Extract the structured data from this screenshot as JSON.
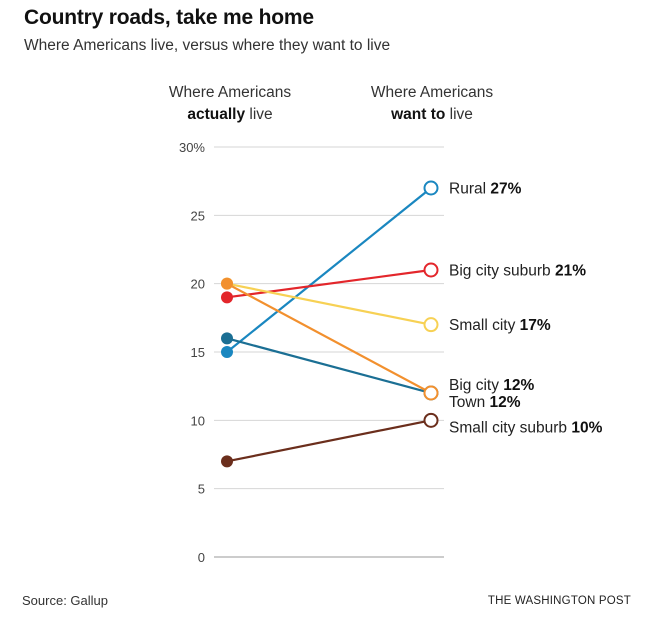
{
  "header": {
    "title": "Country roads, take me home",
    "subtitle": "Where Americans live, versus where they want to live"
  },
  "columns": {
    "left_line1": "Where Americans",
    "left_bold": "actually",
    "left_rest": " live",
    "right_line1": "Where Americans",
    "right_bold": "want to",
    "right_rest": " live"
  },
  "footer": {
    "source": "Source: Gallup",
    "brand": "THE WASHINGTON POST"
  },
  "chart_data": {
    "type": "slope",
    "x": [
      "Where Americans actually live",
      "Where Americans want to live"
    ],
    "ylim": [
      0,
      30
    ],
    "yticks": [
      0,
      5,
      10,
      15,
      20,
      25,
      30
    ],
    "ytick_labels": [
      "0",
      "5",
      "10",
      "15",
      "20",
      "25",
      "30%"
    ],
    "series": [
      {
        "name": "Rural",
        "actual": 15,
        "want": 27,
        "label_value": "27%",
        "color": "#1a87c0"
      },
      {
        "name": "Big city suburb",
        "actual": 19,
        "want": 21,
        "label_value": "21%",
        "color": "#e3262b"
      },
      {
        "name": "Small city",
        "actual": 20,
        "want": 17,
        "label_value": "17%",
        "color": "#f7d154"
      },
      {
        "name": "Big city",
        "actual": 16,
        "want": 12,
        "label_value": "12%",
        "color": "#1b6f94"
      },
      {
        "name": "Town",
        "actual": 20,
        "want": 12,
        "label_value": "12%",
        "color": "#f2902e"
      },
      {
        "name": "Small city suburb",
        "actual": 7,
        "want": 10,
        "label_value": "10%",
        "color": "#6b2e1c"
      }
    ]
  }
}
